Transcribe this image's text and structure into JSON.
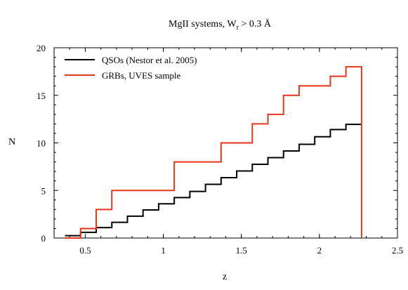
{
  "chart_data": {
    "type": "line",
    "title": {
      "prefix": "MgII systems, W",
      "subscript": "r",
      "suffix": " > 0.3 Å"
    },
    "xlabel": "z",
    "ylabel": "N",
    "xlim": [
      0.3,
      2.5
    ],
    "ylim": [
      0,
      20
    ],
    "xticks": [
      0.5,
      1,
      1.5,
      2,
      2.5
    ],
    "xtick_labels": [
      "0.5",
      "1",
      "1.5",
      "2",
      "2.5"
    ],
    "yticks": [
      0,
      5,
      10,
      15,
      20
    ],
    "ytick_labels": [
      "0",
      "5",
      "10",
      "15",
      "20"
    ],
    "grid": false,
    "legend_position": "top-left",
    "series": [
      {
        "name": "QSOs (Nestor et al. 2005)",
        "color": "#000000",
        "style": "step",
        "x": [
          0.37,
          0.47,
          0.57,
          0.67,
          0.77,
          0.87,
          0.97,
          1.07,
          1.17,
          1.27,
          1.37,
          1.47,
          1.57,
          1.67,
          1.77,
          1.87,
          1.97,
          2.07,
          2.17,
          2.27
        ],
        "y": [
          0.25,
          0.6,
          1.1,
          1.65,
          2.3,
          2.95,
          3.6,
          4.25,
          4.9,
          5.65,
          6.35,
          7.05,
          7.75,
          8.45,
          9.15,
          9.85,
          10.65,
          11.4,
          11.95,
          11.95
        ]
      },
      {
        "name": "GRBs, UVES sample",
        "color": "#e8351b",
        "style": "step",
        "x": [
          0.37,
          0.47,
          0.57,
          0.67,
          1.07,
          1.37,
          1.57,
          1.67,
          1.77,
          1.87,
          2.07,
          2.17,
          2.27,
          2.27
        ],
        "y": [
          0,
          1,
          3,
          5,
          8,
          10,
          12,
          13,
          15,
          16,
          17,
          18,
          18,
          0
        ]
      }
    ]
  }
}
